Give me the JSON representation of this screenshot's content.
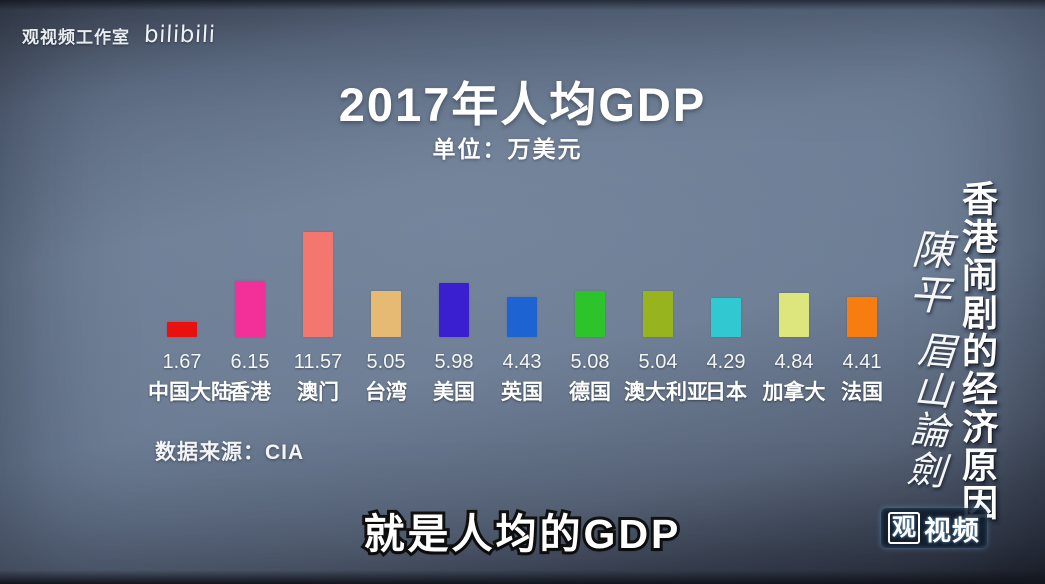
{
  "header": {
    "station_label": "观视频工作室",
    "platform_label": "bilibili"
  },
  "chart_data": {
    "type": "bar",
    "title": "2017年人均GDP",
    "unit_label": "单位：万美元",
    "source_label": "数据来源：CIA",
    "categories": [
      "中国大陆",
      "香港",
      "澳门",
      "台湾",
      "美国",
      "英国",
      "德国",
      "澳大利亚",
      "日本",
      "加拿大",
      "法国"
    ],
    "values": [
      1.67,
      6.15,
      11.57,
      5.05,
      5.98,
      4.43,
      5.08,
      5.04,
      4.29,
      4.84,
      4.41
    ],
    "value_labels": [
      "1.67",
      "6.15",
      "11.57",
      "5.05",
      "5.98",
      "4.43",
      "5.08",
      "5.04",
      "4.29",
      "4.84",
      "4.41"
    ],
    "colors": [
      "#e91010",
      "#f3309a",
      "#f4776f",
      "#e6ba72",
      "#3a1fd1",
      "#1e63d2",
      "#2cc32b",
      "#97b31d",
      "#32c8d2",
      "#dde57d",
      "#f87d10"
    ],
    "ylim": [
      0,
      12
    ],
    "grid": false,
    "legend": false,
    "xlabel": "",
    "ylabel": ""
  },
  "side_banner": {
    "title_vertical": "香港闹剧的经济原因",
    "calligraphy_name": "陳平",
    "calligraphy_brand": "眉山論劍"
  },
  "subtitle": {
    "text": "就是人均的GDP"
  },
  "watermark": {
    "char_boxed": "观",
    "chars": "视频"
  },
  "theme": {
    "background_mid": "#66788f",
    "text_color": "#ffffff"
  }
}
